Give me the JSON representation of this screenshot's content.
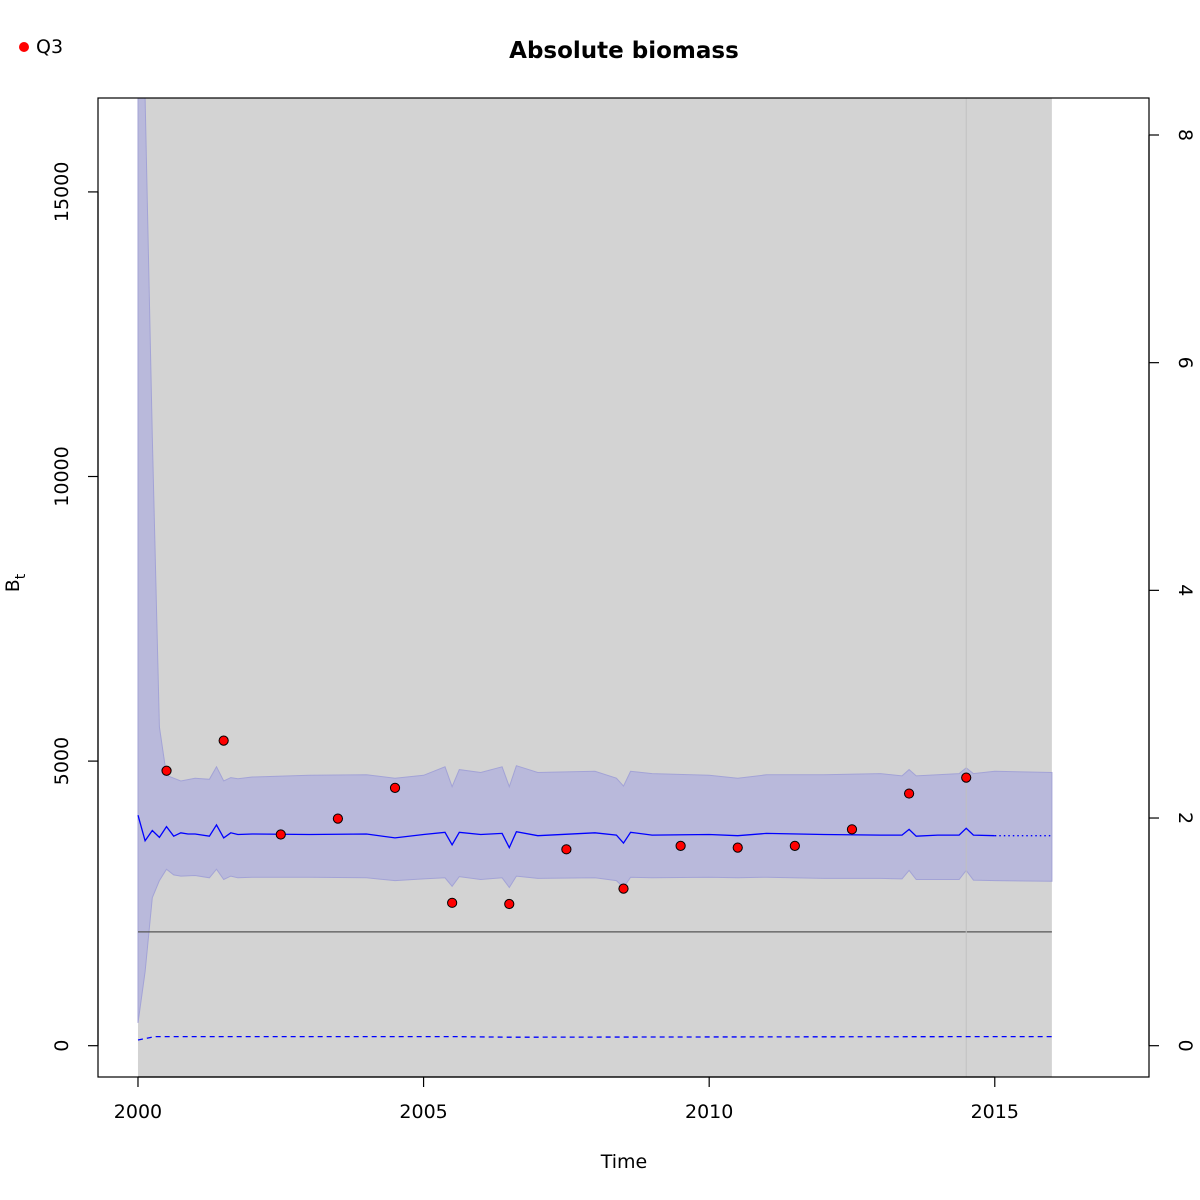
{
  "chart_data": {
    "type": "line",
    "title": "Absolute biomass",
    "xlabel": "Time",
    "ylabel": "B",
    "ylabel_sub": "t",
    "xlim": [
      1999.3,
      2017.7
    ],
    "ylim": [
      -550,
      16650
    ],
    "y2lim": [
      -0.275,
      8.325
    ],
    "x_ticks": [
      2000,
      2005,
      2010,
      2015
    ],
    "y_ticks": [
      0,
      5000,
      10000,
      15000
    ],
    "y2_ticks": [
      0,
      2,
      4,
      6,
      8
    ],
    "legend": {
      "position": "top-left",
      "entries": [
        {
          "label": "Q3",
          "color": "#ff0000",
          "marker": "circle"
        }
      ]
    },
    "background_region": {
      "x": [
        2000,
        2016
      ],
      "color": "#d3d3d3"
    },
    "vertical_line_x": 2014.5,
    "reference_line_y": 2000,
    "observations": {
      "name": "Q3",
      "color": "#ff0000",
      "x": [
        2000.5,
        2001.5,
        2002.5,
        2003.5,
        2004.5,
        2005.5,
        2006.5,
        2007.5,
        2008.5,
        2009.5,
        2010.5,
        2011.5,
        2012.5,
        2013.5,
        2014.5
      ],
      "y": [
        4830,
        5360,
        3710,
        3990,
        4530,
        2510,
        2490,
        3450,
        2760,
        3510,
        3480,
        3510,
        3800,
        4430,
        4710
      ]
    },
    "biomass_estimate": {
      "color": "#0000ff",
      "x": [
        2000.0,
        2000.125,
        2000.25,
        2000.375,
        2000.5,
        2000.625,
        2000.75,
        2000.875,
        2001.0,
        2001.25,
        2001.375,
        2001.5,
        2001.625,
        2001.75,
        2002.0,
        2003.0,
        2004.0,
        2004.5,
        2005.0,
        2005.375,
        2005.5,
        2005.625,
        2006.0,
        2006.375,
        2006.5,
        2006.625,
        2007.0,
        2008.0,
        2008.375,
        2008.5,
        2008.625,
        2009.0,
        2010.0,
        2010.5,
        2011.0,
        2012.0,
        2013.0,
        2013.375,
        2013.5,
        2013.625,
        2014.0,
        2014.375,
        2014.5,
        2014.625,
        2015.0
      ],
      "y": [
        4050,
        3600,
        3780,
        3660,
        3850,
        3680,
        3740,
        3720,
        3720,
        3680,
        3880,
        3650,
        3740,
        3710,
        3720,
        3710,
        3720,
        3650,
        3710,
        3750,
        3530,
        3750,
        3710,
        3730,
        3480,
        3760,
        3690,
        3740,
        3700,
        3560,
        3750,
        3700,
        3710,
        3690,
        3730,
        3710,
        3700,
        3700,
        3800,
        3680,
        3700,
        3700,
        3820,
        3700,
        3690
      ]
    },
    "biomass_forecast": {
      "x": [
        2015,
        2016
      ],
      "y": [
        3690,
        3690
      ],
      "style": "dotted"
    },
    "ci_upper": {
      "x": [
        2000.0,
        2000.125,
        2000.25,
        2000.375,
        2000.5,
        2000.625,
        2000.75,
        2001.0,
        2001.25,
        2001.375,
        2001.5,
        2001.625,
        2001.75,
        2002.0,
        2003.0,
        2004.0,
        2004.5,
        2005.0,
        2005.375,
        2005.5,
        2005.625,
        2006.0,
        2006.375,
        2006.5,
        2006.625,
        2007.0,
        2008.0,
        2008.375,
        2008.5,
        2008.625,
        2009.0,
        2010.0,
        2010.5,
        2011.0,
        2012.0,
        2013.0,
        2013.375,
        2013.5,
        2013.625,
        2014.0,
        2014.375,
        2014.5,
        2014.625,
        2015.0,
        2016.0
      ],
      "y": [
        16650,
        16650,
        10700,
        5600,
        4750,
        4700,
        4650,
        4700,
        4680,
        4900,
        4650,
        4710,
        4690,
        4720,
        4750,
        4760,
        4700,
        4750,
        4900,
        4550,
        4850,
        4800,
        4900,
        4550,
        4920,
        4800,
        4820,
        4700,
        4560,
        4820,
        4780,
        4750,
        4700,
        4760,
        4760,
        4780,
        4740,
        4850,
        4740,
        4760,
        4780,
        4880,
        4780,
        4820,
        4800
      ]
    },
    "ci_lower": {
      "x": [
        2000.0,
        2000.125,
        2000.25,
        2000.375,
        2000.5,
        2000.625,
        2000.75,
        2001.0,
        2001.25,
        2001.375,
        2001.5,
        2001.625,
        2001.75,
        2002.0,
        2003.0,
        2004.0,
        2004.5,
        2005.0,
        2005.375,
        2005.5,
        2005.625,
        2006.0,
        2006.375,
        2006.5,
        2006.625,
        2007.0,
        2008.0,
        2008.375,
        2008.5,
        2008.625,
        2009.0,
        2010.0,
        2010.5,
        2011.0,
        2012.0,
        2013.0,
        2013.375,
        2013.5,
        2013.625,
        2014.0,
        2014.375,
        2014.5,
        2014.625,
        2015.0,
        2016.0
      ],
      "y": [
        400,
        1300,
        2600,
        2900,
        3100,
        3000,
        2980,
        2990,
        2950,
        3100,
        2920,
        2980,
        2950,
        2960,
        2960,
        2950,
        2900,
        2930,
        2950,
        2800,
        2970,
        2920,
        2950,
        2780,
        2980,
        2940,
        2950,
        2900,
        2780,
        2960,
        2950,
        2960,
        2950,
        2960,
        2940,
        2940,
        2930,
        3080,
        2920,
        2920,
        2920,
        3080,
        2910,
        2900,
        2890
      ]
    },
    "secondary_series": {
      "color": "#0000ff",
      "style": "dashed",
      "x": [
        2000,
        2000.3,
        2005.5,
        2006.5,
        2015,
        2016
      ],
      "y2": [
        0.05,
        0.08,
        0.08,
        0.075,
        0.08,
        0.08
      ]
    }
  }
}
